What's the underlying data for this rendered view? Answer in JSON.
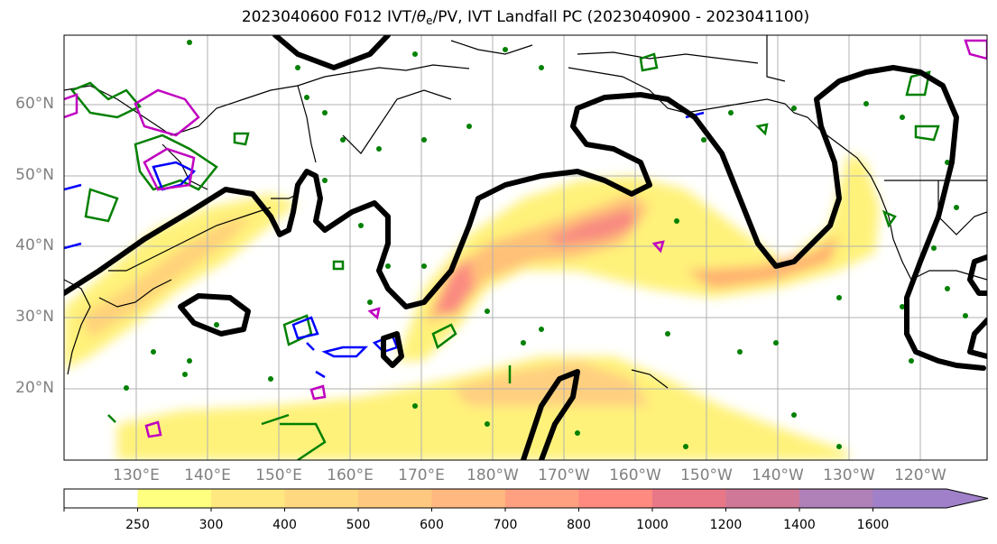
{
  "title": {
    "prefix": "2023040600 F012 IVT/",
    "theta": "θ",
    "theta_sub": "e",
    "suffix": "/PV, IVT Landfall PC (2023040900 - 2023041100)"
  },
  "lat_labels": [
    "60°N",
    "50°N",
    "40°N",
    "30°N",
    "20°N"
  ],
  "lon_labels": [
    "130°E",
    "140°E",
    "150°E",
    "160°E",
    "170°E",
    "180°W",
    "170°W",
    "160°W",
    "150°W",
    "140°W",
    "130°W",
    "120°W"
  ],
  "colorbar": {
    "levels": [
      "250",
      "300",
      "400",
      "500",
      "600",
      "700",
      "800",
      "1000",
      "1200",
      "1400",
      "1600"
    ],
    "colors": [
      "#ffff80",
      "#ffe880",
      "#ffd880",
      "#ffc880",
      "#ffb880",
      "#ffa080",
      "#ff8a80",
      "#e87888",
      "#d07898",
      "#b080b8",
      "#a080c8"
    ]
  },
  "contour_colors": {
    "ivt_pc": "#000000",
    "theta_e": "#008000",
    "pv_blue": "#0000ff",
    "pv_magenta": "#c000c0"
  }
}
